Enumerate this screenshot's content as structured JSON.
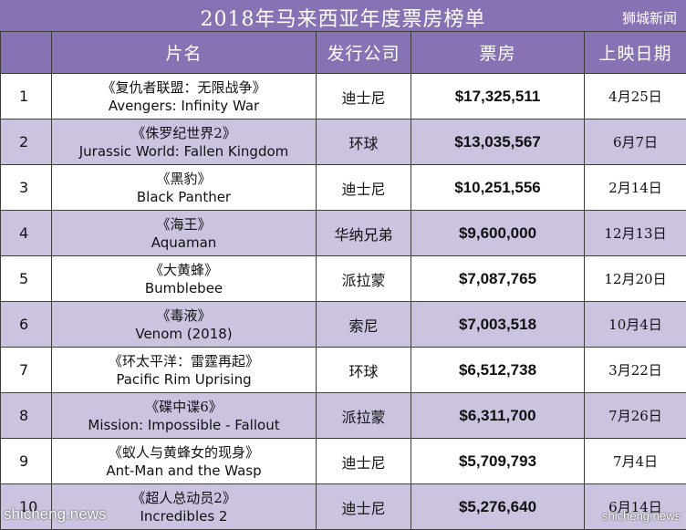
{
  "title": "2018年马来西亚年度票房榜单",
  "source": "狮城新闻",
  "columns": [
    "",
    "片名",
    "发行公司",
    "票房",
    "上映日期"
  ],
  "rows": [
    {
      "rank": "1",
      "title_cn": "《复仇者联盟：无限战争》",
      "title_en": "Avengers: Infinity War",
      "company": "迪士尼",
      "gross": "$17,325,511",
      "date": "4月25日"
    },
    {
      "rank": "2",
      "title_cn": "《侏罗纪世界2》",
      "title_en": "Jurassic World: Fallen Kingdom",
      "company": "环球",
      "gross": "$13,035,567",
      "date": "6月7日"
    },
    {
      "rank": "3",
      "title_cn": "《黑豹》",
      "title_en": "Black Panther",
      "company": "迪士尼",
      "gross": "$10,251,556",
      "date": "2月14日"
    },
    {
      "rank": "4",
      "title_cn": "《海王》",
      "title_en": "Aquaman",
      "company": "华纳兄弟",
      "gross": "$9,600,000",
      "date": "12月13日"
    },
    {
      "rank": "5",
      "title_cn": "《大黄蜂》",
      "title_en": "Bumblebee",
      "company": "派拉蒙",
      "gross": "$7,087,765",
      "date": "12月20日"
    },
    {
      "rank": "6",
      "title_cn": "《毒液》",
      "title_en": "Venom (2018)",
      "company": "索尼",
      "gross": "$7,003,518",
      "date": "10月4日"
    },
    {
      "rank": "7",
      "title_cn": "《环太平洋：雷霆再起》",
      "title_en": "Pacific Rim Uprising",
      "company": "环球",
      "gross": "$6,512,738",
      "date": "3月22日"
    },
    {
      "rank": "8",
      "title_cn": "《碟中谍6》",
      "title_en": "Mission: Impossible - Fallout",
      "company": "派拉蒙",
      "gross": "$6,311,700",
      "date": "7月26日"
    },
    {
      "rank": "9",
      "title_cn": "《蚁人与黄蜂女的现身》",
      "title_en": "Ant-Man and the Wasp",
      "company": "迪士尼",
      "gross": "$5,709,793",
      "date": "7月4日"
    },
    {
      "rank": "10",
      "title_cn": "《超人总动员2》",
      "title_en": "Incredibles 2",
      "company": "迪士尼",
      "gross": "$5,276,640",
      "date": "6月14日"
    }
  ],
  "watermark_left": "shicheng.news",
  "watermark_right": "shicheng.news",
  "colors": {
    "header": "#8773b3",
    "stripe": "#ccc3e0"
  }
}
